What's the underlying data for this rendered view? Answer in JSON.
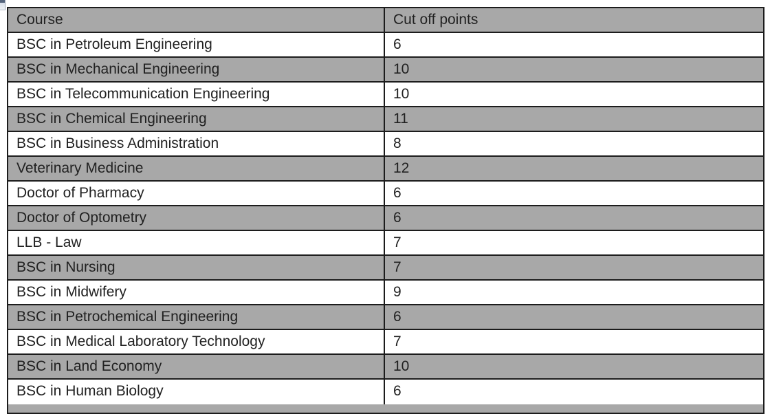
{
  "page": {
    "background": "#ffffff"
  },
  "icons": {
    "top_left_anchor": "cropped-object-anchor"
  },
  "table": {
    "columns": [
      "Course",
      "Cut off points"
    ],
    "rows": [
      {
        "course": "BSC in Petroleum Engineering",
        "points": "6"
      },
      {
        "course": "BSC in Mechanical Engineering",
        "points": "10"
      },
      {
        "course": "BSC in Telecommunication Engineering",
        "points": "10"
      },
      {
        "course": "BSC in Chemical Engineering",
        "points": "11"
      },
      {
        "course": "BSC in Business Administration",
        "points": "8"
      },
      {
        "course": "Veterinary Medicine",
        "points": "12"
      },
      {
        "course": "Doctor of Pharmacy",
        "points": "6"
      },
      {
        "course": "Doctor of Optometry",
        "points": "6"
      },
      {
        "course": "LLB - Law",
        "points": "7"
      },
      {
        "course": "BSC in Nursing",
        "points": "7"
      },
      {
        "course": "BSC in Midwifery",
        "points": "9"
      },
      {
        "course": "BSC in Petrochemical Engineering",
        "points": "6"
      },
      {
        "course": "BSC in Medical Laboratory Technology",
        "points": "7"
      },
      {
        "course": "BSC in Land Economy",
        "points": "10"
      },
      {
        "course": "BSC in Human Biology",
        "points": "6"
      }
    ],
    "colors": {
      "header_bg": "#a8a8a8",
      "shaded_row_bg": "#a8a8a8",
      "plain_row_bg": "#ffffff",
      "border": "#1c1c1c",
      "text": "#212121"
    }
  }
}
